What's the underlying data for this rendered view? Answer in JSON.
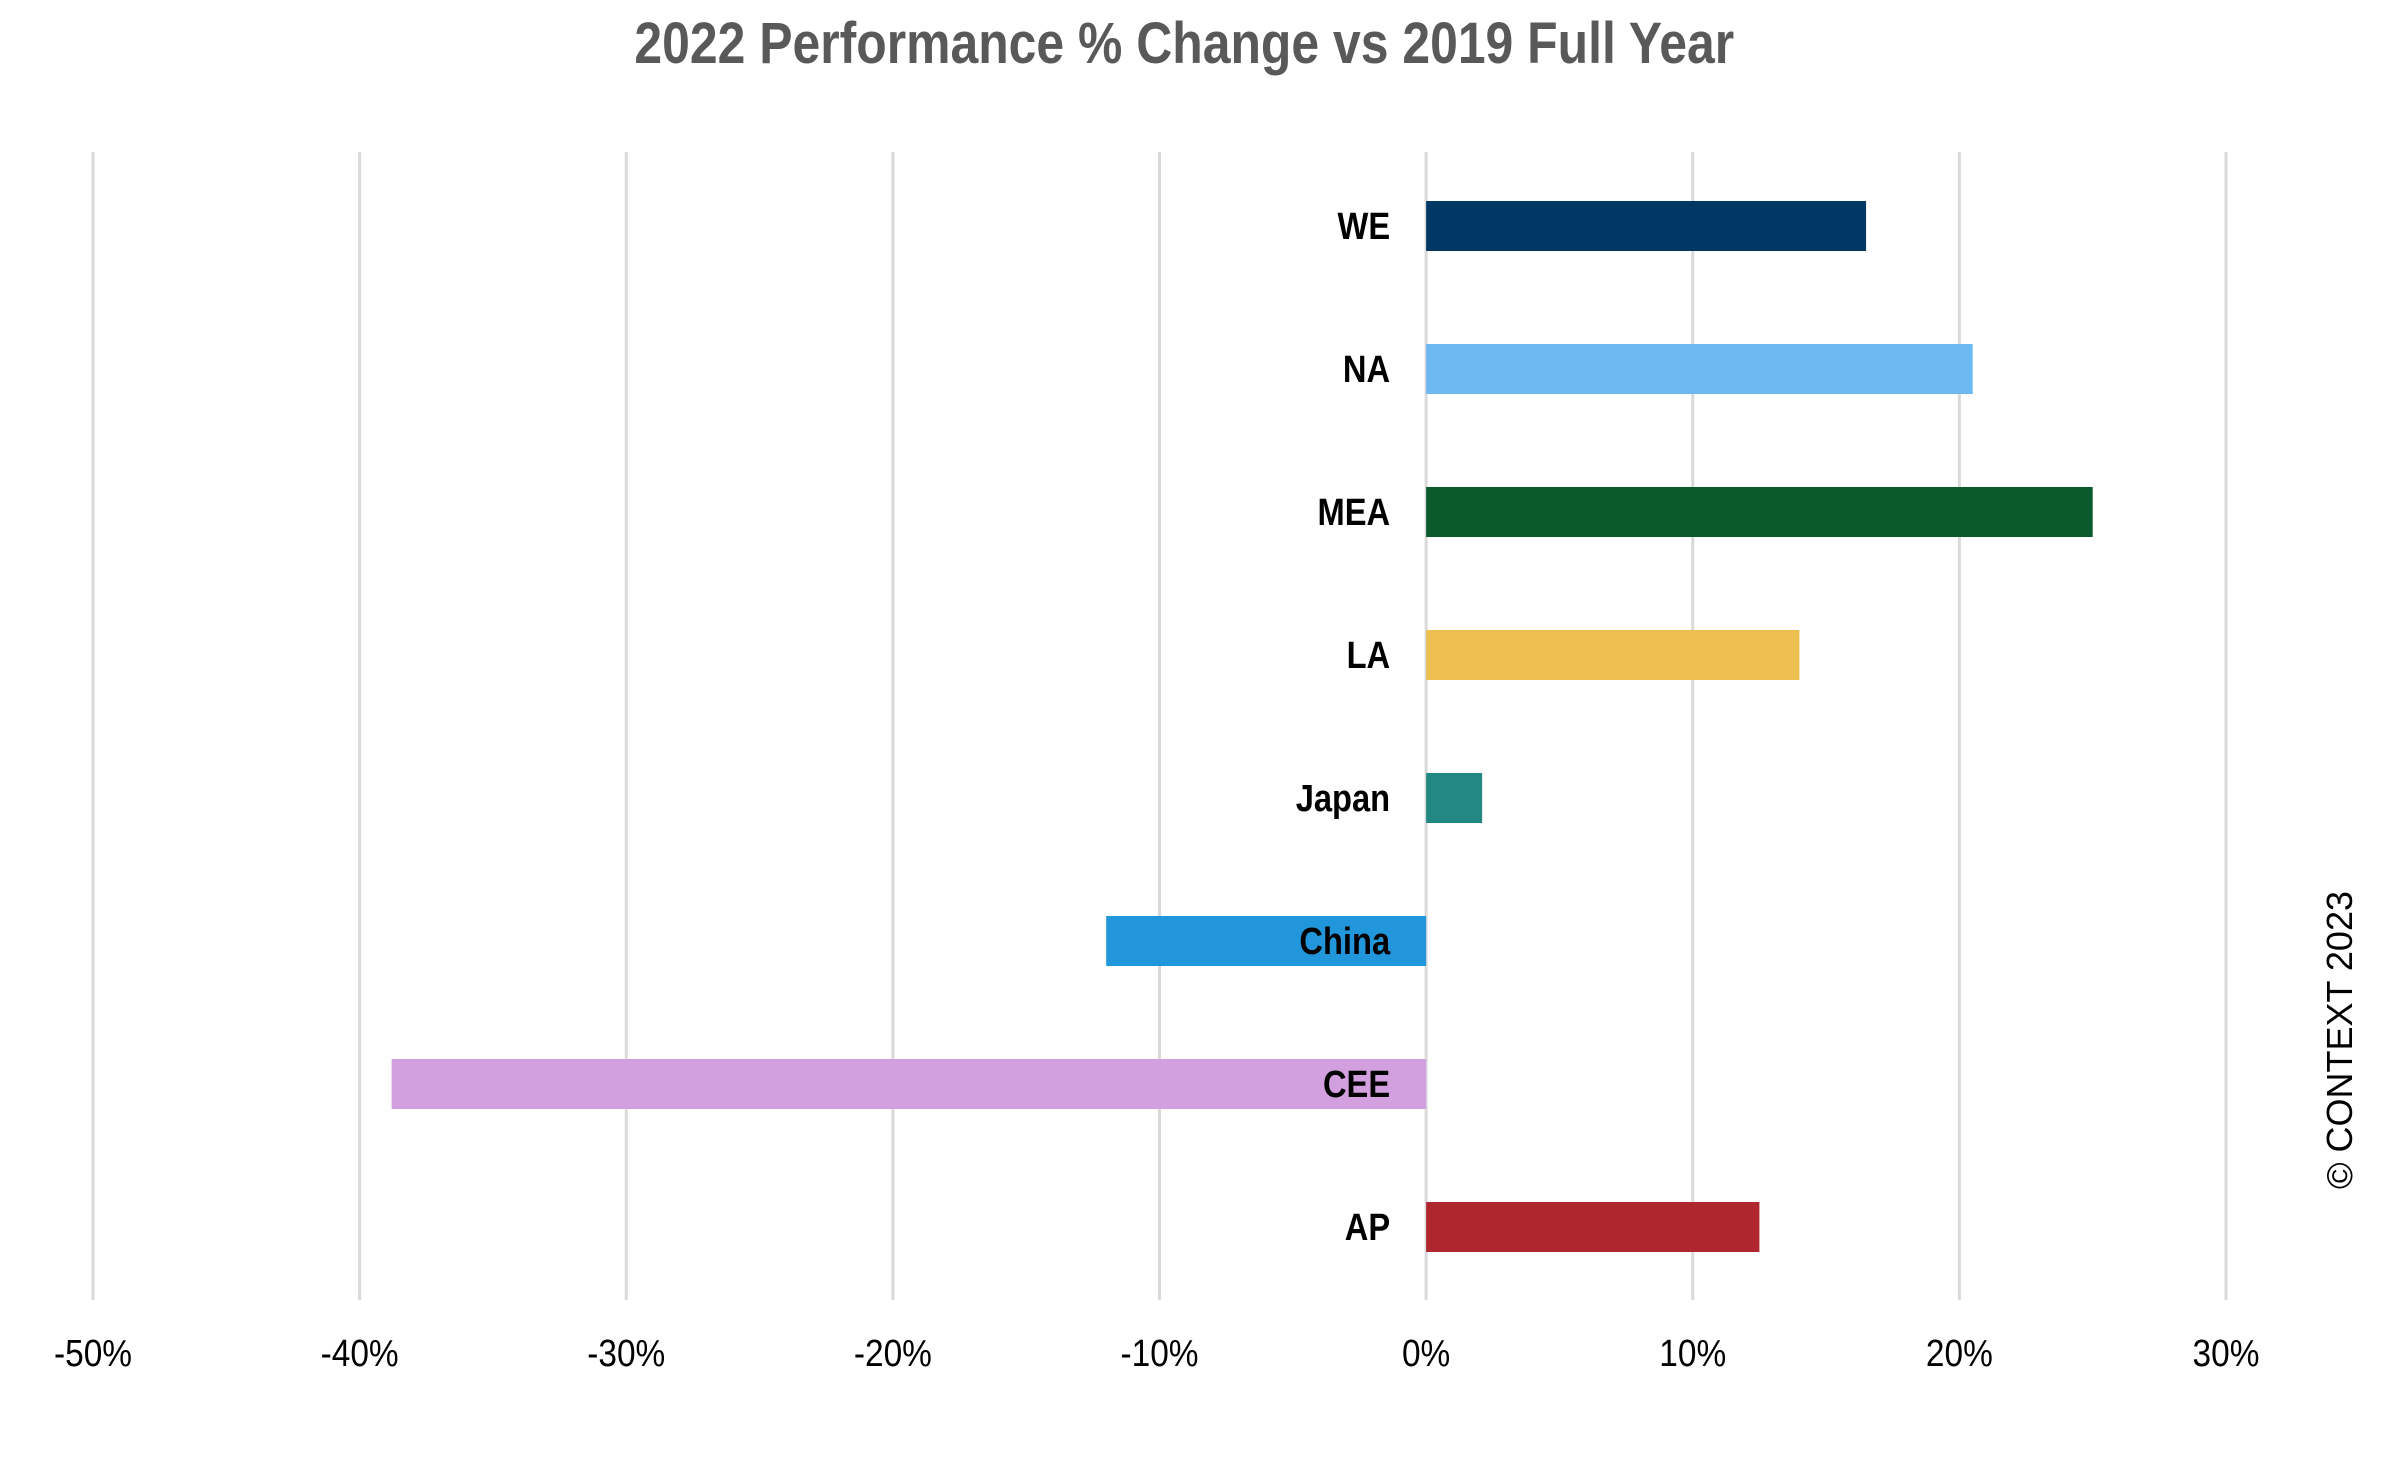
{
  "chart_data": {
    "type": "bar",
    "orientation": "horizontal",
    "title": "2022 Performance % Change vs 2019 Full Year",
    "categories": [
      "WE",
      "NA",
      "MEA",
      "LA",
      "Japan",
      "China",
      "CEE",
      "AP"
    ],
    "values": [
      16.5,
      20.5,
      25.0,
      14.0,
      2.1,
      -12.0,
      -38.8,
      12.5
    ],
    "colors": [
      "#003865",
      "#6BB9F0",
      "#0B5A2D",
      "#ECBF50",
      "#228882",
      "#2196DB",
      "#D3A0DF",
      "#B0262F"
    ],
    "xlim": [
      -50,
      30
    ],
    "xticks": [
      -50,
      -40,
      -30,
      -20,
      -10,
      0,
      10,
      20,
      30
    ],
    "tick_suffix": "%",
    "grid": true,
    "legend": "none"
  },
  "copyright": "© CONTEXT 2023"
}
